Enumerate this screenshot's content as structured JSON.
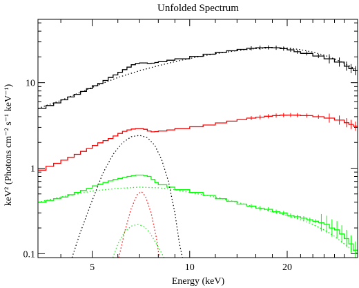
{
  "chart_data": {
    "type": "line",
    "title": "Unfolded Spectrum",
    "xlabel": "Energy (keV)",
    "ylabel": "keV² (Photons cm⁻² s⁻¹ keV⁻¹)",
    "x_scale": "log",
    "y_scale": "log",
    "xlim": [
      3.4,
      33
    ],
    "ylim": [
      0.09,
      55
    ],
    "grid": false,
    "x_tick_labels": [
      {
        "value": 5,
        "label": "5"
      },
      {
        "value": 10,
        "label": "10"
      },
      {
        "value": 20,
        "label": "20"
      }
    ],
    "y_tick_labels": [
      {
        "value": 0.1,
        "label": "0.1"
      },
      {
        "value": 1,
        "label": "1"
      },
      {
        "value": 10,
        "label": "10"
      }
    ],
    "series": [
      {
        "color": "#000000",
        "style": "step",
        "x": [
          3.4,
          3.6,
          3.8,
          4.0,
          4.2,
          4.4,
          4.6,
          4.8,
          5.0,
          5.2,
          5.4,
          5.6,
          5.8,
          6.0,
          6.2,
          6.4,
          6.6,
          6.8,
          7.0,
          7.2,
          7.4,
          7.6,
          7.8,
          8.0,
          8.5,
          9,
          10,
          11,
          12,
          13,
          14,
          15,
          16,
          17,
          18,
          19,
          20,
          21,
          22,
          24,
          26,
          28,
          30,
          31,
          32,
          33
        ],
        "y": [
          5.0,
          5.4,
          5.8,
          6.3,
          6.8,
          7.3,
          7.9,
          8.5,
          9.2,
          9.8,
          10.6,
          11.5,
          12.3,
          13.2,
          14.2,
          15.2,
          16.2,
          16.8,
          17.0,
          17.0,
          16.8,
          16.9,
          17.2,
          17.6,
          18.3,
          19.0,
          20.3,
          21.5,
          22.6,
          23.6,
          24.5,
          25.2,
          25.6,
          25.8,
          25.6,
          25.0,
          24.2,
          23.0,
          22.0,
          20.5,
          19.0,
          17.4,
          15.6,
          14.6,
          13.8,
          13.2
        ]
      },
      {
        "color": "#000000",
        "style": "dotted",
        "x": [
          3.4,
          4,
          5,
          6,
          7,
          8,
          9,
          10,
          12,
          14,
          16,
          18,
          20,
          22,
          24,
          26,
          28,
          30,
          33
        ],
        "y": [
          5.0,
          6.2,
          8.8,
          11.5,
          13.8,
          15.8,
          17.6,
          19.2,
          21.8,
          23.7,
          25.0,
          25.6,
          25.4,
          24.3,
          22.8,
          21.0,
          19.0,
          16.9,
          14.0
        ]
      },
      {
        "color": "#ff0000",
        "style": "step",
        "x": [
          3.4,
          3.6,
          3.8,
          4.0,
          4.2,
          4.4,
          4.6,
          4.8,
          5.0,
          5.2,
          5.4,
          5.6,
          5.8,
          6.0,
          6.2,
          6.4,
          6.6,
          6.8,
          7.0,
          7.2,
          7.4,
          7.6,
          7.8,
          8.0,
          8.5,
          9,
          10,
          11,
          12,
          13,
          14,
          15,
          16,
          17,
          18,
          19,
          20,
          21,
          22,
          24,
          26,
          28,
          30,
          31,
          32,
          33
        ],
        "y": [
          0.95,
          1.05,
          1.14,
          1.24,
          1.34,
          1.45,
          1.57,
          1.7,
          1.84,
          1.98,
          2.1,
          2.22,
          2.38,
          2.55,
          2.7,
          2.8,
          2.87,
          2.9,
          2.9,
          2.85,
          2.72,
          2.66,
          2.68,
          2.72,
          2.8,
          2.9,
          3.05,
          3.2,
          3.38,
          3.55,
          3.7,
          3.85,
          3.95,
          4.05,
          4.12,
          4.17,
          4.18,
          4.17,
          4.12,
          4.0,
          3.85,
          3.65,
          3.4,
          3.25,
          3.1,
          3.0
        ]
      },
      {
        "color": "#00ff00",
        "style": "step",
        "x": [
          3.4,
          3.6,
          3.8,
          4.0,
          4.2,
          4.4,
          4.6,
          4.8,
          5.0,
          5.2,
          5.4,
          5.6,
          5.8,
          6.0,
          6.2,
          6.4,
          6.6,
          6.8,
          7.0,
          7.2,
          7.4,
          7.6,
          7.8,
          8.0,
          8.5,
          9,
          10,
          11,
          12,
          13,
          14,
          15,
          16,
          17,
          18,
          19,
          20,
          21,
          22,
          23,
          24,
          25,
          26,
          27,
          28,
          29,
          30,
          31,
          32,
          33
        ],
        "y": [
          0.4,
          0.42,
          0.44,
          0.46,
          0.49,
          0.52,
          0.55,
          0.58,
          0.62,
          0.65,
          0.68,
          0.71,
          0.74,
          0.76,
          0.78,
          0.8,
          0.82,
          0.83,
          0.83,
          0.82,
          0.8,
          0.74,
          0.68,
          0.64,
          0.6,
          0.56,
          0.52,
          0.48,
          0.44,
          0.41,
          0.38,
          0.36,
          0.34,
          0.33,
          0.31,
          0.3,
          0.28,
          0.27,
          0.26,
          0.25,
          0.24,
          0.23,
          0.22,
          0.2,
          0.19,
          0.17,
          0.15,
          0.13,
          0.11,
          0.1
        ]
      },
      {
        "color": "#00ff00",
        "style": "dotted",
        "x": [
          3.4,
          4,
          5,
          6,
          7,
          8,
          9,
          10,
          12,
          14,
          16,
          18,
          20,
          22,
          24,
          26,
          28,
          30,
          33
        ],
        "y": [
          0.4,
          0.46,
          0.54,
          0.58,
          0.6,
          0.59,
          0.56,
          0.52,
          0.46,
          0.4,
          0.35,
          0.31,
          0.28,
          0.25,
          0.22,
          0.19,
          0.16,
          0.13,
          0.1
        ]
      },
      {
        "color": "#000000",
        "style": "dotted",
        "x": [
          4.33,
          4.6,
          5.0,
          5.4,
          5.8,
          6.2,
          6.6,
          7.0,
          7.4,
          7.8,
          8.2,
          8.6,
          9.0,
          9.3,
          9.5
        ],
        "y": [
          0.09,
          0.18,
          0.42,
          0.88,
          1.45,
          1.98,
          2.33,
          2.42,
          2.28,
          1.85,
          1.25,
          0.7,
          0.3,
          0.13,
          0.09
        ]
      },
      {
        "color": "#ff0000",
        "style": "dotted",
        "x": [
          6.04,
          6.3,
          6.6,
          6.9,
          7.1,
          7.3,
          7.6,
          7.9,
          8.05
        ],
        "y": [
          0.09,
          0.18,
          0.34,
          0.5,
          0.53,
          0.47,
          0.3,
          0.15,
          0.09
        ]
      },
      {
        "color": "#00ff00",
        "style": "dotted",
        "x": [
          5.79,
          6.0,
          6.3,
          6.6,
          6.9,
          7.2,
          7.5,
          7.8,
          8.1,
          8.33
        ],
        "y": [
          0.09,
          0.13,
          0.18,
          0.21,
          0.22,
          0.21,
          0.18,
          0.14,
          0.11,
          0.09
        ]
      }
    ]
  }
}
